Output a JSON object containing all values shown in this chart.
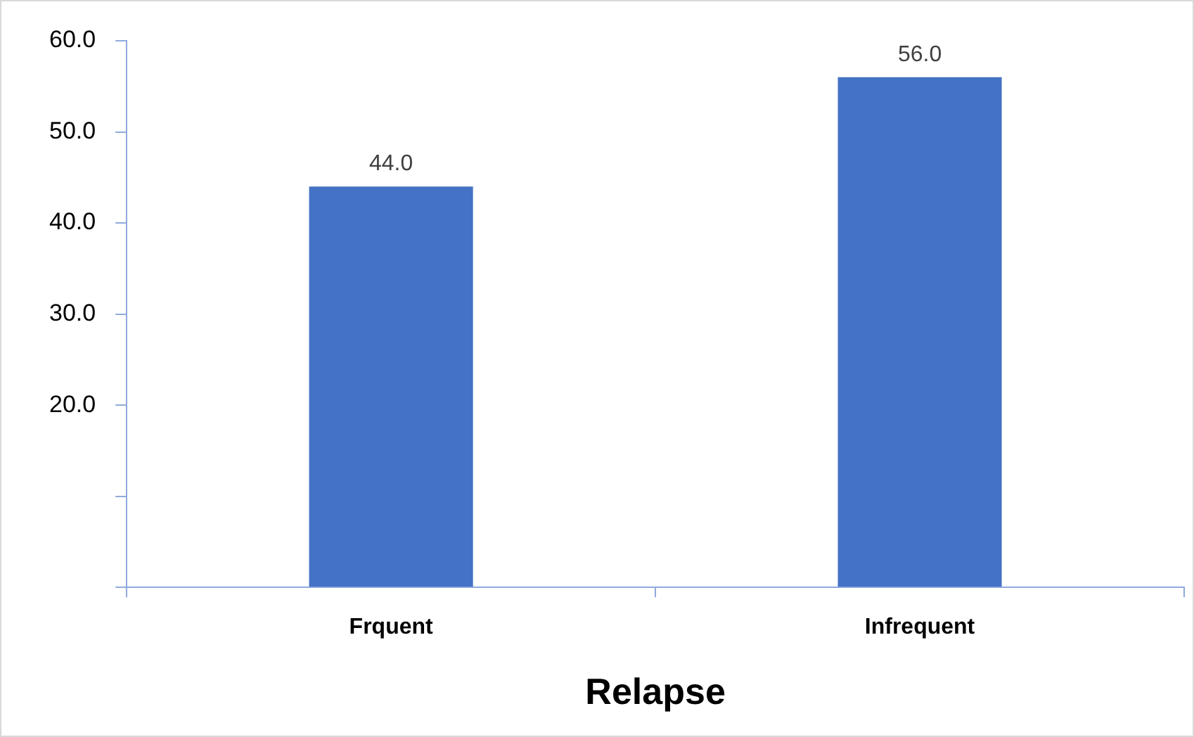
{
  "chart_data": {
    "type": "bar",
    "xlabel": "Relapse",
    "categories": [
      "Frquent",
      "Infrequent"
    ],
    "values": [
      44,
      56
    ],
    "color": "#4472c4",
    "value_labels": [
      "44.0",
      "56.0"
    ],
    "ylim": [
      0,
      60
    ],
    "yticks": [
      {
        "value": 0,
        "label": null
      },
      {
        "value": 10,
        "label": null
      },
      {
        "value": 20,
        "label": "20.0"
      },
      {
        "value": 30,
        "label": "30.0"
      },
      {
        "value": 40,
        "label": "40.0"
      },
      {
        "value": 50,
        "label": "50.0"
      },
      {
        "value": 60,
        "label": "60.0"
      }
    ],
    "grid": false,
    "legend": false
  }
}
